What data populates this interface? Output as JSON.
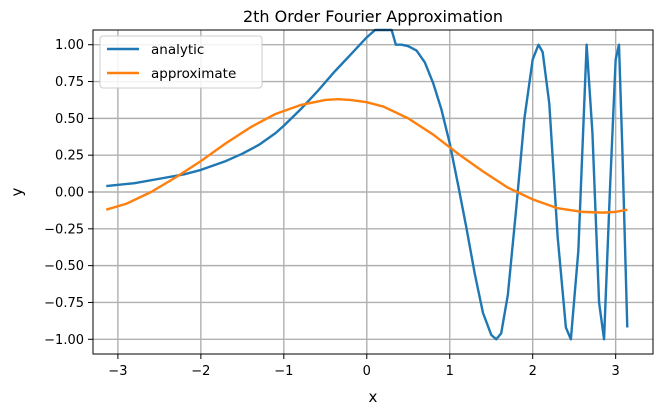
{
  "chart_data": {
    "type": "line",
    "title": "2th Order Fourier Approximation",
    "xlabel": "x",
    "ylabel": "y",
    "xlim": [
      -3.3,
      3.45
    ],
    "ylim": [
      -1.1,
      1.1
    ],
    "grid": true,
    "legend": "top-left",
    "x_ticks": [
      -3,
      -2,
      -1,
      0,
      1,
      2,
      3
    ],
    "x_tick_labels": [
      "−3",
      "−2",
      "−1",
      "0",
      "1",
      "2",
      "3"
    ],
    "y_ticks": [
      1.0,
      0.75,
      0.5,
      0.25,
      0.0,
      -0.25,
      -0.5,
      -0.75,
      -1.0
    ],
    "y_tick_labels": [
      "1.00",
      "0.75",
      "0.50",
      "0.25",
      "0.00",
      "−0.25",
      "−0.50",
      "−0.75",
      "−1.00"
    ],
    "series": [
      {
        "name": "analytic",
        "color": "#1f77b4",
        "x": [
          -3.14,
          -2.8,
          -2.5,
          -2.2,
          -2.0,
          -1.7,
          -1.5,
          -1.3,
          -1.1,
          -1.0,
          -0.8,
          -0.6,
          -0.4,
          -0.3,
          -0.2,
          -0.1,
          0.0,
          0.1,
          0.2,
          0.3,
          0.35,
          0.42,
          0.5,
          0.6,
          0.7,
          0.8,
          0.9,
          1.0,
          1.1,
          1.2,
          1.3,
          1.4,
          1.5,
          1.56,
          1.62,
          1.7,
          1.8,
          1.9,
          2.0,
          2.07,
          2.12,
          2.2,
          2.3,
          2.4,
          2.46,
          2.55,
          2.65,
          2.72,
          2.8,
          2.86,
          2.93,
          3.0,
          3.04,
          3.08,
          3.14
        ],
        "y": [
          0.04,
          0.06,
          0.09,
          0.12,
          0.15,
          0.21,
          0.26,
          0.32,
          0.4,
          0.45,
          0.56,
          0.68,
          0.81,
          0.87,
          0.93,
          0.99,
          1.05,
          1.1,
          1.15,
          1.18,
          1.0,
          1.0,
          0.99,
          0.96,
          0.88,
          0.74,
          0.56,
          0.33,
          0.05,
          -0.24,
          -0.55,
          -0.82,
          -0.97,
          -1.0,
          -0.96,
          -0.7,
          -0.12,
          0.5,
          0.9,
          1.0,
          0.95,
          0.6,
          -0.3,
          -0.92,
          -1.0,
          -0.4,
          1.0,
          0.4,
          -0.75,
          -1.0,
          0.0,
          0.9,
          1.0,
          0.3,
          -0.92
        ]
      },
      {
        "name": "approximate",
        "color": "#ff7f0e",
        "x": [
          -3.14,
          -2.9,
          -2.6,
          -2.3,
          -2.0,
          -1.7,
          -1.4,
          -1.1,
          -0.8,
          -0.5,
          -0.35,
          -0.2,
          0.0,
          0.2,
          0.5,
          0.8,
          1.1,
          1.4,
          1.7,
          2.0,
          2.3,
          2.6,
          2.85,
          3.0,
          3.14
        ],
        "y": [
          -0.12,
          -0.08,
          0.0,
          0.1,
          0.21,
          0.33,
          0.44,
          0.53,
          0.59,
          0.625,
          0.63,
          0.625,
          0.61,
          0.58,
          0.5,
          0.39,
          0.26,
          0.14,
          0.03,
          -0.05,
          -0.11,
          -0.135,
          -0.14,
          -0.135,
          -0.12
        ]
      }
    ]
  }
}
